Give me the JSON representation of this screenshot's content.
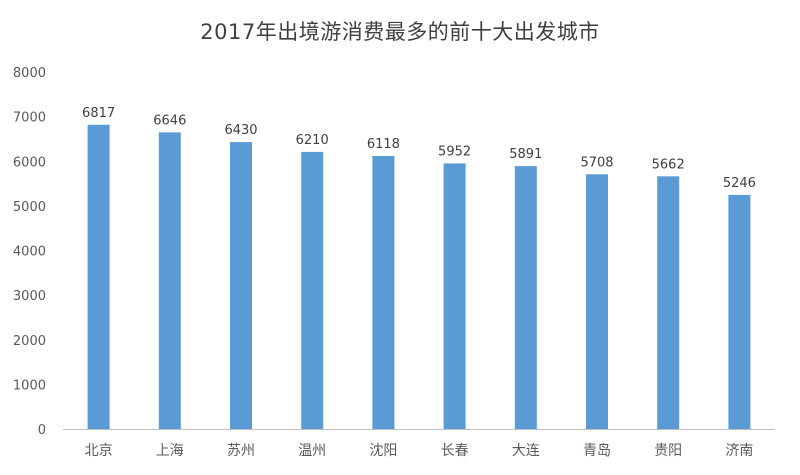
{
  "chart_data": {
    "type": "bar",
    "title": "2017年出境游消费最多的前十大出发城市",
    "categories": [
      "北京",
      "上海",
      "苏州",
      "温州",
      "沈阳",
      "长春",
      "大连",
      "青岛",
      "贵阳",
      "济南"
    ],
    "values": [
      6817,
      6646,
      6430,
      6210,
      6118,
      5952,
      5891,
      5708,
      5662,
      5246
    ],
    "yticks": [
      0,
      1000,
      2000,
      3000,
      4000,
      5000,
      6000,
      7000,
      8000
    ],
    "ylim": [
      0,
      8000
    ],
    "grid": false,
    "legend": "none",
    "bar_color": "#5b9bd5",
    "axis_color": "#bfbfbf"
  }
}
